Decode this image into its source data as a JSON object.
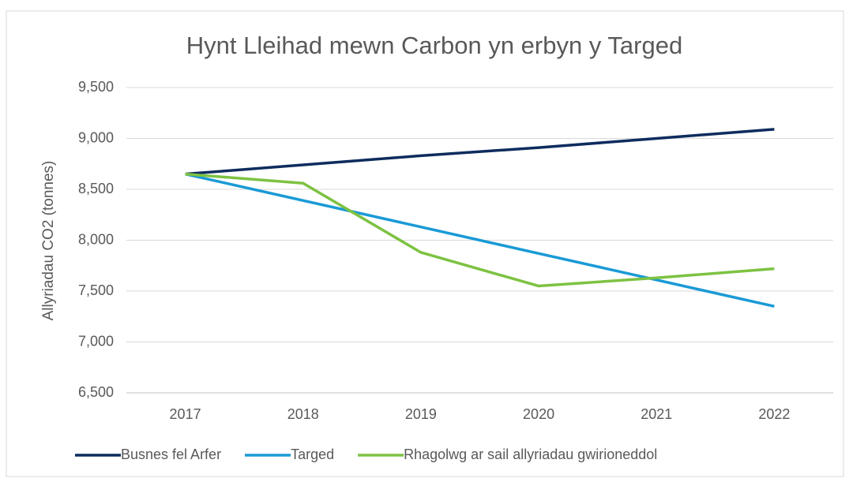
{
  "chart_data": {
    "type": "line",
    "title": "Hynt  Lleihad mewn Carbon yn erbyn y Targed",
    "y_label": "Allyriadau CO2  (tonnes)",
    "categories": [
      "2017",
      "2018",
      "2019",
      "2020",
      "2021",
      "2022"
    ],
    "series": [
      {
        "name": "Busnes fel Arfer",
        "color": "#0e2c5e",
        "values": [
          8650,
          8740,
          8830,
          8910,
          9000,
          9090
        ]
      },
      {
        "name": "Targed",
        "color": "#1a9ad6",
        "values": [
          8650,
          8390,
          8130,
          7870,
          7610,
          7350
        ]
      },
      {
        "name": "Rhagolwg ar sail allyriadau gwirioneddol",
        "color": "#7dc242",
        "values": [
          8650,
          8560,
          7880,
          7550,
          7630,
          7720
        ]
      }
    ],
    "ylim": [
      6500,
      9500
    ],
    "yticks": [
      {
        "value": 6500,
        "label": "6,500"
      },
      {
        "value": 7000,
        "label": "7,000"
      },
      {
        "value": 7500,
        "label": "7,500"
      },
      {
        "value": 8000,
        "label": "8,000"
      },
      {
        "value": 8500,
        "label": "8,500"
      },
      {
        "value": 9000,
        "label": "9,000"
      },
      {
        "value": 9500,
        "label": "9,500"
      }
    ],
    "grid": true,
    "legend": "bottom"
  }
}
